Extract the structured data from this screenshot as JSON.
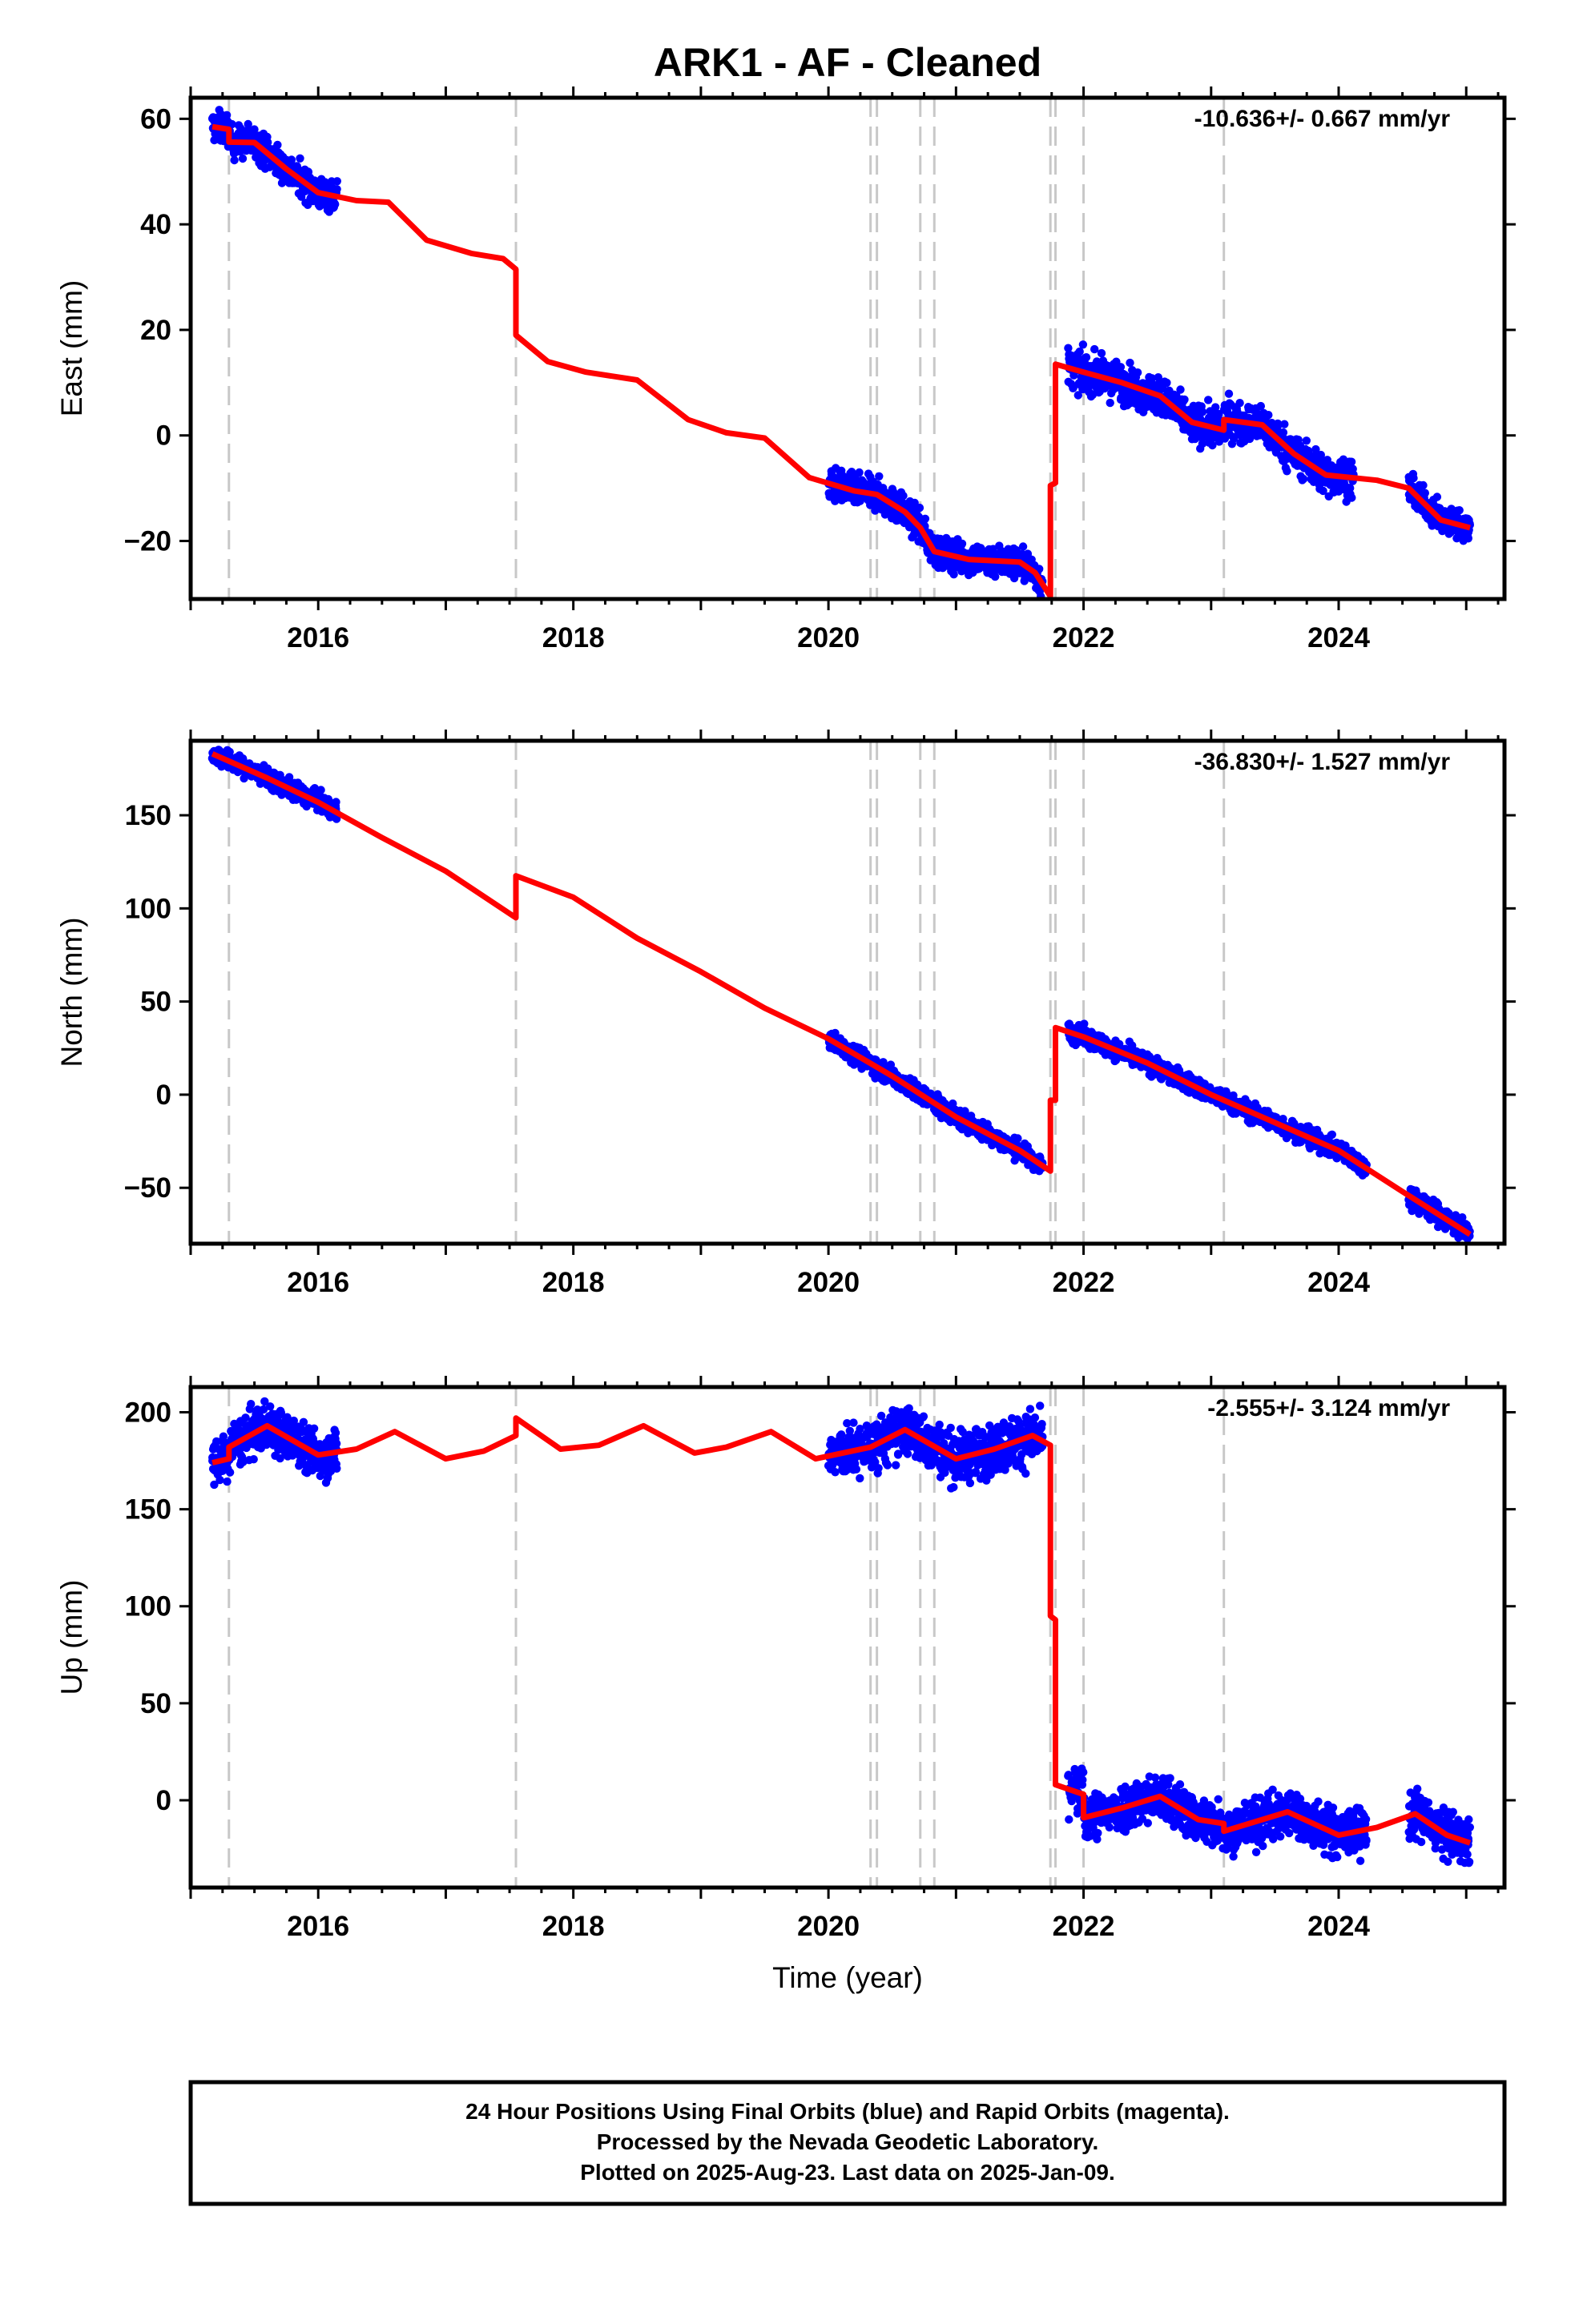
{
  "title": "ARK1  - AF - Cleaned",
  "x_axis_label": "Time (year)",
  "caption": {
    "lines": [
      "24 Hour Positions Using Final Orbits (blue) and Rapid Orbits (magenta).",
      "Processed by the Nevada Geodetic Laboratory.",
      "Plotted on 2025-Aug-23. Last data on 2025-Jan-09."
    ]
  },
  "colors": {
    "data_points": "#0000ff",
    "model_line": "#ff0000",
    "event_lines": "#c8c8c8",
    "frame": "#000000"
  },
  "chart_data": [
    {
      "type": "scatter",
      "ylabel": "East (mm)",
      "rate_label": "-10.636+/- 0.667 mm/yr",
      "xlim": [
        2015.0,
        2025.3
      ],
      "ylim": [
        -31,
        64
      ],
      "xticks": [
        2016,
        2018,
        2020,
        2022,
        2024
      ],
      "yticks": [
        -20,
        0,
        20,
        40,
        60
      ],
      "grid": false,
      "event_lines": [
        2015.3,
        2017.55,
        2020.33,
        2020.38,
        2020.72,
        2020.83,
        2021.74,
        2021.78,
        2022.0,
        2023.1
      ],
      "point_segments": [
        {
          "start": 2015.17,
          "end": 2016.15,
          "spread": 1.5
        },
        {
          "start": 2020.0,
          "end": 2021.68,
          "spread": 1.5
        },
        {
          "start": 2021.88,
          "end": 2024.12,
          "spread": 1.8
        },
        {
          "start": 2024.55,
          "end": 2025.03,
          "spread": 1.3
        }
      ],
      "model": [
        [
          2015.17,
          58.5
        ],
        [
          2015.3,
          58.0
        ],
        [
          2015.3,
          55.6
        ],
        [
          2015.5,
          55.5
        ],
        [
          2015.75,
          50.5
        ],
        [
          2016.0,
          46.0
        ],
        [
          2016.3,
          44.5
        ],
        [
          2016.55,
          44.2
        ],
        [
          2016.85,
          37.0
        ],
        [
          2017.2,
          34.5
        ],
        [
          2017.45,
          33.5
        ],
        [
          2017.55,
          31.5
        ],
        [
          2017.55,
          19.0
        ],
        [
          2017.8,
          14.0
        ],
        [
          2018.1,
          12.0
        ],
        [
          2018.5,
          10.5
        ],
        [
          2018.9,
          3.0
        ],
        [
          2019.2,
          0.5
        ],
        [
          2019.5,
          -0.5
        ],
        [
          2019.85,
          -8.0
        ],
        [
          2020.2,
          -10.5
        ],
        [
          2020.33,
          -11.0
        ],
        [
          2020.38,
          -11.2
        ],
        [
          2020.6,
          -14.5
        ],
        [
          2020.72,
          -17.5
        ],
        [
          2020.83,
          -22.0
        ],
        [
          2021.1,
          -23.5
        ],
        [
          2021.5,
          -24.0
        ],
        [
          2021.62,
          -26.0
        ],
        [
          2021.74,
          -30.5
        ],
        [
          2021.74,
          -9.5
        ],
        [
          2021.78,
          -9.0
        ],
        [
          2021.78,
          13.5
        ],
        [
          2022.0,
          12.0
        ],
        [
          2022.3,
          10.0
        ],
        [
          2022.6,
          7.5
        ],
        [
          2022.85,
          2.5
        ],
        [
          2023.1,
          1.0
        ],
        [
          2023.1,
          3.0
        ],
        [
          2023.4,
          2.0
        ],
        [
          2023.65,
          -3.5
        ],
        [
          2023.9,
          -7.5
        ],
        [
          2024.3,
          -8.5
        ],
        [
          2024.55,
          -10.0
        ],
        [
          2024.8,
          -16.0
        ],
        [
          2025.03,
          -17.5
        ]
      ]
    },
    {
      "type": "scatter",
      "ylabel": "North (mm)",
      "rate_label": "-36.830+/- 1.527 mm/yr",
      "xlim": [
        2015.0,
        2025.3
      ],
      "ylim": [
        -80,
        190
      ],
      "xticks": [
        2016,
        2018,
        2020,
        2022,
        2024
      ],
      "yticks": [
        -50,
        0,
        50,
        100,
        150
      ],
      "grid": false,
      "event_lines": [
        2015.3,
        2017.55,
        2020.33,
        2020.38,
        2020.72,
        2020.83,
        2021.74,
        2021.78,
        2022.0,
        2023.1
      ],
      "point_segments": [
        {
          "start": 2015.17,
          "end": 2016.15,
          "spread": 2.5
        },
        {
          "start": 2020.0,
          "end": 2021.68,
          "spread": 2.5
        },
        {
          "start": 2021.88,
          "end": 2024.22,
          "spread": 2.5
        },
        {
          "start": 2024.55,
          "end": 2025.03,
          "spread": 3.0
        }
      ],
      "model": [
        [
          2015.17,
          183.0
        ],
        [
          2015.6,
          170.0
        ],
        [
          2016.0,
          157.0
        ],
        [
          2016.5,
          138.0
        ],
        [
          2017.0,
          120.0
        ],
        [
          2017.55,
          95.0
        ],
        [
          2017.55,
          117.5
        ],
        [
          2018.0,
          106.0
        ],
        [
          2018.5,
          84.0
        ],
        [
          2019.0,
          66.0
        ],
        [
          2019.5,
          46.5
        ],
        [
          2020.0,
          30.0
        ],
        [
          2020.5,
          10.0
        ],
        [
          2021.0,
          -12.0
        ],
        [
          2021.5,
          -30.0
        ],
        [
          2021.74,
          -41.0
        ],
        [
          2021.74,
          -3.0
        ],
        [
          2021.78,
          -3.0
        ],
        [
          2021.78,
          36.0
        ],
        [
          2022.0,
          31.0
        ],
        [
          2022.5,
          17.0
        ],
        [
          2023.0,
          0.0
        ],
        [
          2023.5,
          -15.0
        ],
        [
          2024.0,
          -30.0
        ],
        [
          2024.5,
          -52.0
        ],
        [
          2025.03,
          -75.0
        ]
      ]
    },
    {
      "type": "scatter",
      "ylabel": "Up (mm)",
      "rate_label": "-2.555+/- 3.124 mm/yr",
      "xlim": [
        2015.0,
        2025.3
      ],
      "ylim": [
        -45,
        213
      ],
      "xticks": [
        2016,
        2018,
        2020,
        2022,
        2024
      ],
      "yticks": [
        0,
        50,
        100,
        150,
        200
      ],
      "grid": false,
      "event_lines": [
        2015.3,
        2017.55,
        2020.33,
        2020.38,
        2020.72,
        2020.83,
        2021.74,
        2021.78,
        2022.0,
        2023.1
      ],
      "point_segments": [
        {
          "start": 2015.17,
          "end": 2016.15,
          "spread": 6.0
        },
        {
          "start": 2020.0,
          "end": 2021.68,
          "spread": 6.5
        },
        {
          "start": 2021.88,
          "end": 2024.22,
          "spread": 6.0
        },
        {
          "start": 2024.55,
          "end": 2025.03,
          "spread": 6.0
        }
      ],
      "model": [
        [
          2015.17,
          174.0
        ],
        [
          2015.3,
          176.0
        ],
        [
          2015.3,
          182.0
        ],
        [
          2015.6,
          193.0
        ],
        [
          2016.0,
          178.0
        ],
        [
          2016.3,
          181.0
        ],
        [
          2016.6,
          190.0
        ],
        [
          2017.0,
          176.0
        ],
        [
          2017.3,
          180.0
        ],
        [
          2017.55,
          188.0
        ],
        [
          2017.55,
          197.0
        ],
        [
          2017.9,
          181.0
        ],
        [
          2018.2,
          183.0
        ],
        [
          2018.55,
          193.0
        ],
        [
          2018.95,
          179.0
        ],
        [
          2019.2,
          182.0
        ],
        [
          2019.55,
          190.0
        ],
        [
          2019.9,
          176.0
        ],
        [
          2020.33,
          182.0
        ],
        [
          2020.6,
          191.0
        ],
        [
          2021.0,
          176.0
        ],
        [
          2021.3,
          181.0
        ],
        [
          2021.6,
          188.0
        ],
        [
          2021.74,
          183.0
        ],
        [
          2021.74,
          95.0
        ],
        [
          2021.78,
          93.0
        ],
        [
          2021.78,
          8.0
        ],
        [
          2022.0,
          3.0
        ],
        [
          2022.0,
          -9.0
        ],
        [
          2022.3,
          -4.0
        ],
        [
          2022.6,
          2.0
        ],
        [
          2022.9,
          -10.0
        ],
        [
          2023.1,
          -12.0
        ],
        [
          2023.1,
          -16.0
        ],
        [
          2023.6,
          -6.0
        ],
        [
          2024.0,
          -18.0
        ],
        [
          2024.3,
          -14.0
        ],
        [
          2024.6,
          -7.0
        ],
        [
          2024.85,
          -18.0
        ],
        [
          2025.03,
          -22.0
        ]
      ]
    }
  ]
}
